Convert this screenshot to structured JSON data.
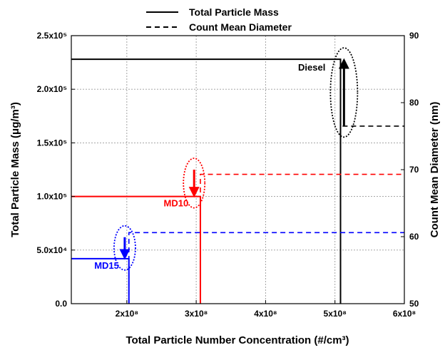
{
  "chart_data": {
    "type": "line",
    "xlabel": "Total Particle Number Concentration (#/cm³)",
    "ylabel_left": "Total Particle Mass (μg/m³)",
    "ylabel_right": "Count Mean Diameter (nm)",
    "xlim": [
      120000000,
      600000000
    ],
    "ylim_left": [
      0,
      250000
    ],
    "ylim_right": [
      50,
      90
    ],
    "grid": true,
    "legend_position": "top-center",
    "x_ticks": [
      {
        "value": 200000000,
        "label": "2x10⁸"
      },
      {
        "value": 300000000,
        "label": "3x10⁸"
      },
      {
        "value": 400000000,
        "label": "4x10⁸"
      },
      {
        "value": 500000000,
        "label": "5x10⁸"
      },
      {
        "value": 600000000,
        "label": "6x10⁸"
      }
    ],
    "y_ticks_left": [
      {
        "value": 0,
        "label": "0.0"
      },
      {
        "value": 50000,
        "label": "5.0x10⁴"
      },
      {
        "value": 100000,
        "label": "1.0x10⁵"
      },
      {
        "value": 150000,
        "label": "1.5x10⁵"
      },
      {
        "value": 200000,
        "label": "2.0x10⁵"
      },
      {
        "value": 250000,
        "label": "2.5x10⁵"
      }
    ],
    "y_ticks_right": [
      {
        "value": 50,
        "label": "50"
      },
      {
        "value": 60,
        "label": "60"
      },
      {
        "value": 70,
        "label": "70"
      },
      {
        "value": 80,
        "label": "80"
      },
      {
        "value": 90,
        "label": "90"
      }
    ],
    "legend": [
      {
        "label": "Total Particle Mass",
        "style": "solid"
      },
      {
        "label": "Count Mean Diameter",
        "style": "dashed"
      }
    ],
    "series": [
      {
        "fuel": "Diesel",
        "color": "#000000",
        "number_conc": 508000000,
        "mass": 228000,
        "cmd": 76.5
      },
      {
        "fuel": "MD10",
        "color": "#ff0000",
        "number_conc": 306000000,
        "mass": 100000,
        "cmd": 69.3
      },
      {
        "fuel": "MD15",
        "color": "#0000ff",
        "number_conc": 203000000,
        "mass": 42000,
        "cmd": 60.6
      }
    ],
    "annotations": [
      {
        "label": "Diesel",
        "color": "#000000",
        "direction": "up",
        "x": 513000000,
        "y_from": 166000,
        "y_to": 228000
      },
      {
        "label": "MD10",
        "color": "#ff0000",
        "direction": "down",
        "x": 297000000,
        "y_from": 125000,
        "y_to": 100000
      },
      {
        "label": "MD15",
        "color": "#0000ff",
        "direction": "down",
        "x": 197000000,
        "y_from": 62000,
        "y_to": 42000
      }
    ]
  }
}
